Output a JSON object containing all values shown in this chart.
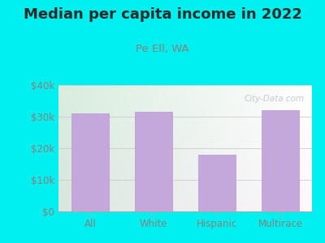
{
  "title": "Median per capita income in 2022",
  "subtitle": "Pe Ell, WA",
  "categories": [
    "All",
    "White",
    "Hispanic",
    "Multirace"
  ],
  "values": [
    31000,
    31500,
    18000,
    32000
  ],
  "bar_color": "#c4a8dc",
  "bar_edge_color": "#b898cc",
  "background_color": "#00f0f0",
  "plot_bg_color_tl": "#d0eed8",
  "plot_bg_color_tr": "#eef8f8",
  "plot_bg_color_bl": "#ddf0dc",
  "plot_bg_color_br": "#f8fff8",
  "title_color": "#2a2a2a",
  "subtitle_color": "#888080",
  "tick_label_color": "#888080",
  "grid_color": "#cccccc",
  "ylim": [
    0,
    40000
  ],
  "yticks": [
    0,
    10000,
    20000,
    30000,
    40000
  ],
  "ytick_labels": [
    "$0",
    "$10k",
    "$20k",
    "$30k",
    "$40k"
  ],
  "title_fontsize": 13,
  "subtitle_fontsize": 9.5,
  "tick_fontsize": 8.5,
  "watermark": "City-Data.com"
}
